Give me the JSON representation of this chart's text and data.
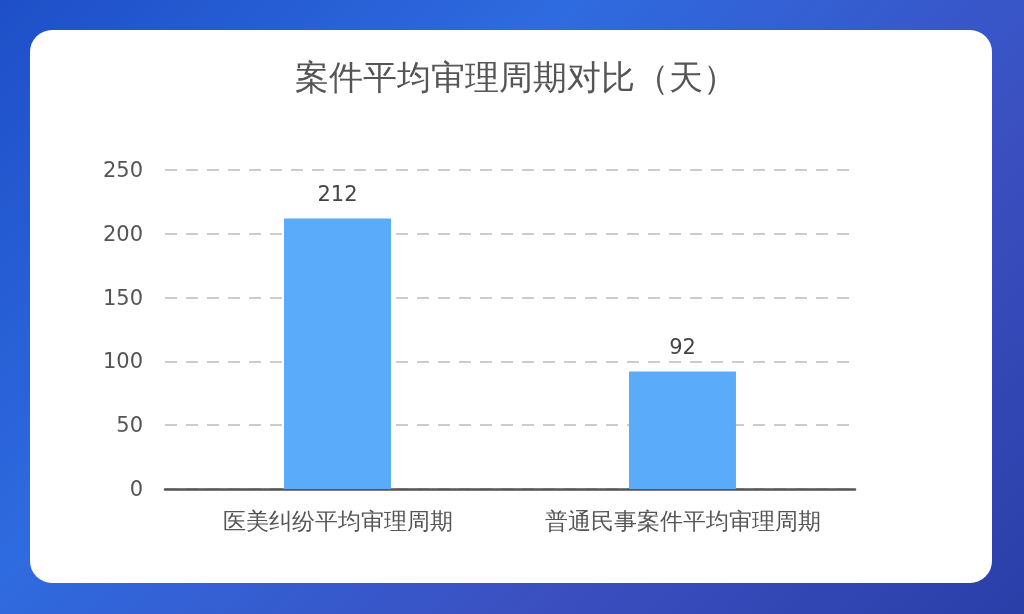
{
  "chart_data": {
    "type": "bar",
    "title": "案件平均审理周期对比（天）",
    "categories": [
      "医美纠纷平均审理周期",
      "普通民事案件平均审理周期"
    ],
    "values": [
      212,
      92
    ],
    "color": "#5aabf9",
    "ylim": [
      0,
      250
    ],
    "yticks": [
      0,
      50,
      100,
      150,
      200,
      250
    ],
    "grid": "y",
    "data_labels": true
  }
}
